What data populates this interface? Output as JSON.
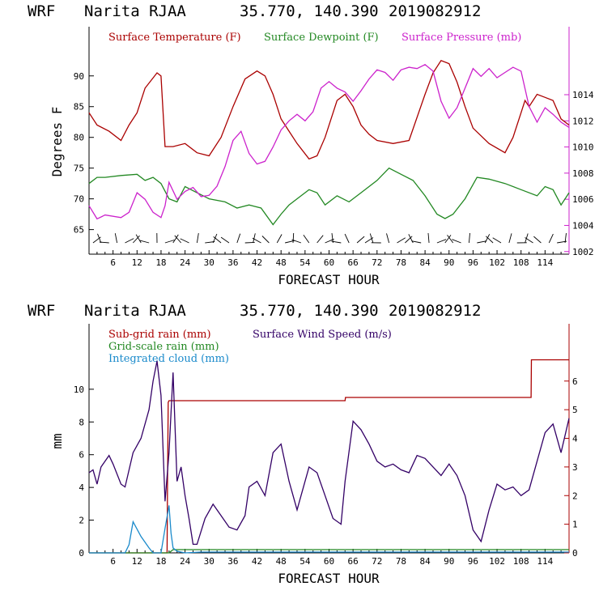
{
  "chart_data": [
    {
      "type": "line",
      "header": {
        "model": "WRF",
        "station": "Narita RJAA",
        "coords": "35.770, 140.390",
        "init": "2019082912"
      },
      "xlabel": "FORECAST HOUR",
      "ylabel": "Degrees F",
      "xlim": [
        0,
        120
      ],
      "ylim": [
        61,
        98
      ],
      "y2lim": [
        1001.8,
        1019.2
      ],
      "x_ticks": [
        6,
        12,
        18,
        24,
        30,
        36,
        42,
        48,
        54,
        60,
        66,
        72,
        78,
        84,
        90,
        96,
        102,
        108,
        114
      ],
      "x_tick_labels": [
        "6",
        "12",
        "18",
        "24",
        "30",
        "36",
        "42",
        "48",
        "54",
        "60",
        "66",
        "72",
        "78",
        "84",
        "90",
        "96",
        "102",
        "108",
        "114"
      ],
      "y_ticks": [
        65,
        70,
        75,
        80,
        85,
        90
      ],
      "y_tick_labels": [
        "65",
        "70",
        "75",
        "80",
        "85",
        "90"
      ],
      "y2_ticks": [
        1002,
        1004,
        1006,
        1008,
        1010,
        1012,
        1014
      ],
      "y2_tick_labels": [
        "1002",
        "1004",
        "1006",
        "1008",
        "1010",
        "1012",
        "1014"
      ],
      "series": [
        {
          "name": "Surface Temperature (F)",
          "axis": "left",
          "color": "#aa0000",
          "x": [
            0,
            2,
            5,
            8,
            10,
            12,
            14,
            17,
            18,
            19,
            21,
            24,
            27,
            30,
            33,
            36,
            39,
            42,
            44,
            46,
            48,
            50,
            52,
            55,
            57,
            59,
            62,
            64,
            66,
            68,
            70,
            72,
            76,
            80,
            84,
            86,
            88,
            90,
            92,
            94,
            96,
            100,
            104,
            106,
            108,
            109,
            110,
            112,
            114,
            116,
            118,
            120
          ],
          "values": [
            84,
            82,
            81,
            79.5,
            82,
            84,
            88,
            90.5,
            90,
            78.5,
            78.5,
            79,
            77.5,
            77,
            80,
            85,
            89.5,
            90.8,
            90,
            87,
            83,
            81,
            79,
            76.5,
            77,
            80,
            86,
            87,
            85,
            82,
            80.5,
            79.5,
            79,
            79.5,
            87,
            90.5,
            92.5,
            92,
            89,
            85,
            81.5,
            79,
            77.5,
            80,
            84,
            86,
            85,
            87,
            86.5,
            86,
            83,
            82
          ]
        },
        {
          "name": "Surface Dewpoint (F)",
          "axis": "left",
          "color": "#228822",
          "x": [
            0,
            2,
            4,
            8,
            12,
            14,
            16,
            18,
            20,
            22,
            24,
            27,
            30,
            34,
            37,
            40,
            43,
            46,
            48,
            50,
            52,
            55,
            57,
            59,
            62,
            65,
            68,
            72,
            75,
            78,
            81,
            84,
            87,
            89,
            91,
            94,
            97,
            100,
            104,
            108,
            112,
            114,
            116,
            118,
            120
          ],
          "values": [
            72.5,
            73.5,
            73.5,
            73.8,
            74,
            73,
            73.5,
            72.5,
            70,
            69.5,
            72,
            71,
            70,
            69.5,
            68.5,
            69,
            68.5,
            65.8,
            67.5,
            69,
            70,
            71.5,
            71,
            69,
            70.5,
            69.5,
            71,
            73,
            75,
            74,
            73,
            70.5,
            67.5,
            66.8,
            67.5,
            70,
            73.5,
            73.2,
            72.5,
            71.5,
            70.5,
            72,
            71.5,
            69,
            71
          ]
        },
        {
          "name": "Surface Pressure (mb)",
          "axis": "right",
          "color": "#cc22cc",
          "x": [
            0,
            2,
            4,
            8,
            10,
            12,
            14,
            16,
            18,
            19,
            20,
            22,
            24,
            26,
            28,
            30,
            32,
            34,
            36,
            38,
            40,
            42,
            44,
            46,
            48,
            50,
            52,
            54,
            56,
            58,
            60,
            62,
            64,
            66,
            68,
            70,
            72,
            74,
            76,
            78,
            80,
            82,
            84,
            86,
            88,
            90,
            92,
            94,
            96,
            98,
            100,
            102,
            104,
            106,
            108,
            110,
            112,
            114,
            116,
            118,
            120
          ],
          "values": [
            1005.5,
            1004.5,
            1004.8,
            1004.6,
            1005,
            1006.5,
            1006,
            1005,
            1004.6,
            1005.5,
            1007.3,
            1006,
            1006.6,
            1006.9,
            1006.2,
            1006.3,
            1007,
            1008.5,
            1010.5,
            1011.2,
            1009.5,
            1008.7,
            1008.9,
            1010,
            1011.3,
            1012,
            1012.5,
            1012,
            1012.7,
            1014.5,
            1015,
            1014.5,
            1014.2,
            1013.5,
            1014.3,
            1015.2,
            1015.9,
            1015.7,
            1015.1,
            1015.9,
            1016.1,
            1016,
            1016.3,
            1015.8,
            1013.5,
            1012.2,
            1013,
            1014.5,
            1016,
            1015.4,
            1016,
            1015.3,
            1015.7,
            1016.1,
            1015.8,
            1013.1,
            1011.9,
            1013,
            1012.5,
            1011.9,
            1011.5
          ]
        }
      ],
      "winds": {
        "present": true
      }
    },
    {
      "type": "line",
      "header": {
        "model": "WRF",
        "station": "Narita RJAA",
        "coords": "35.770, 140.390",
        "init": "2019082912"
      },
      "xlabel": "FORECAST HOUR",
      "ylabel": "mm",
      "xlim": [
        0,
        120
      ],
      "ylim": [
        0,
        14
      ],
      "y2lim": [
        0,
        8
      ],
      "x_ticks": [
        6,
        12,
        18,
        24,
        30,
        36,
        42,
        48,
        54,
        60,
        66,
        72,
        78,
        84,
        90,
        96,
        102,
        108,
        114
      ],
      "x_tick_labels": [
        "6",
        "12",
        "18",
        "24",
        "30",
        "36",
        "42",
        "48",
        "54",
        "60",
        "66",
        "72",
        "78",
        "84",
        "90",
        "96",
        "102",
        "108",
        "114"
      ],
      "y_ticks": [
        0,
        2,
        4,
        6,
        8,
        10
      ],
      "y_tick_labels": [
        "0",
        "2",
        "4",
        "6",
        "8",
        "10"
      ],
      "y2_ticks": [
        0,
        1,
        2,
        3,
        4,
        5,
        6
      ],
      "y2_tick_labels": [
        "0",
        "1",
        "2",
        "3",
        "4",
        "5",
        "6"
      ],
      "series": [
        {
          "name": "Sub-grid rain (mm)",
          "axis": "left",
          "color": "#aa0000",
          "step": true,
          "x": [
            0,
            19.5,
            19.6,
            19.8,
            20,
            64,
            64.1,
            110.5,
            110.6,
            120
          ],
          "values": [
            0,
            0,
            4,
            9.2,
            9.3,
            9.3,
            9.5,
            9.5,
            11.8,
            11.8
          ]
        },
        {
          "name": "Grid-scale rain (mm)",
          "axis": "left",
          "color": "#228822",
          "x": [
            0,
            20,
            21,
            120
          ],
          "values": [
            0,
            0,
            0.2,
            0.2
          ]
        },
        {
          "name": "Integrated cloud (mm)",
          "axis": "left",
          "color": "#1a8acb",
          "x": [
            0,
            9,
            10,
            11,
            13,
            15,
            16,
            18,
            19,
            20,
            20.5,
            21,
            22,
            24,
            28,
            60,
            80,
            100,
            120
          ],
          "values": [
            0,
            0,
            0.5,
            1.9,
            1.0,
            0.3,
            0,
            0,
            1.5,
            2.9,
            1.2,
            0.3,
            0.1,
            0,
            0.05,
            0.05,
            0.05,
            0.05,
            0.05
          ]
        },
        {
          "name": "Surface Wind Speed (m/s)",
          "axis": "right",
          "color": "#330066",
          "x": [
            0,
            1,
            2,
            3,
            5,
            6,
            8,
            9,
            11,
            13,
            15,
            16,
            17,
            18,
            19,
            20,
            21,
            22,
            23,
            24,
            25,
            26,
            27,
            29,
            31,
            33,
            35,
            37,
            39,
            40,
            42,
            44,
            46,
            48,
            50,
            52,
            53,
            55,
            57,
            59,
            61,
            63,
            64,
            66,
            68,
            70,
            72,
            74,
            76,
            78,
            80,
            82,
            84,
            86,
            88,
            90,
            92,
            94,
            96,
            98,
            100,
            102,
            104,
            106,
            108,
            110,
            112,
            114,
            116,
            118,
            120
          ],
          "values": [
            2.8,
            2.9,
            2.4,
            3.0,
            3.4,
            3.1,
            2.4,
            2.3,
            3.5,
            4.0,
            5.0,
            6.0,
            6.7,
            5.5,
            1.8,
            3.5,
            6.3,
            2.5,
            3.0,
            2.0,
            1.2,
            0.3,
            0.3,
            1.2,
            1.7,
            1.3,
            0.9,
            0.8,
            1.3,
            2.3,
            2.5,
            2.0,
            3.5,
            3.8,
            2.5,
            1.5,
            2.0,
            3.0,
            2.8,
            2.0,
            1.2,
            1.0,
            2.5,
            4.6,
            4.3,
            3.8,
            3.2,
            3.0,
            3.1,
            2.9,
            2.8,
            3.4,
            3.3,
            3.0,
            2.7,
            3.1,
            2.7,
            2.0,
            0.8,
            0.4,
            1.5,
            2.4,
            2.2,
            2.3,
            2.0,
            2.2,
            3.2,
            4.2,
            4.5,
            3.5,
            4.7
          ]
        }
      ]
    }
  ]
}
